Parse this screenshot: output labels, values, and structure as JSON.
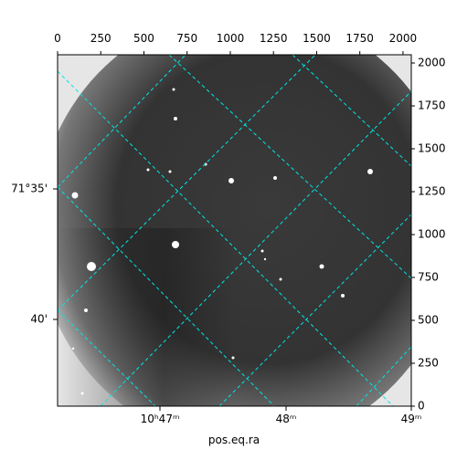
{
  "chart_data": {
    "type": "image",
    "xlabel": "pos.eq.ra",
    "xlim": [
      0,
      2048
    ],
    "xticks": [
      0,
      250,
      500,
      750,
      1000,
      1250,
      1500,
      1750,
      2000
    ],
    "ylim": [
      0,
      2048
    ],
    "yticks": [
      0,
      250,
      500,
      750,
      1000,
      1250,
      1500,
      1750,
      2000
    ],
    "ra_labels": [
      "10ʰ47ᵐ",
      "48ᵐ",
      "49ᵐ"
    ],
    "dec_labels": [
      "71°35'",
      "40'"
    ]
  }
}
